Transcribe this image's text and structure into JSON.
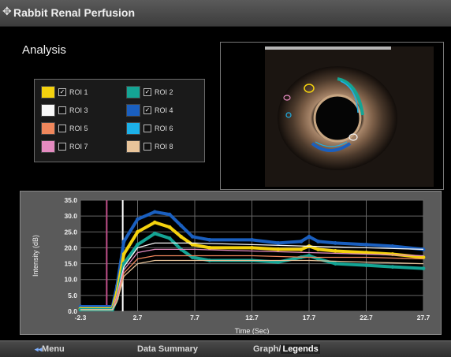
{
  "window": {
    "title": "Rabbit Renal Perfusion",
    "menu_icon": "window-menu-icon"
  },
  "analysis": {
    "title": "Analysis",
    "rois": [
      {
        "label": "ROI 1",
        "color": "#f4d20e",
        "checked": true
      },
      {
        "label": "ROI 2",
        "color": "#14a494",
        "checked": true
      },
      {
        "label": "ROI 3",
        "color": "#f8f8f8",
        "checked": false
      },
      {
        "label": "ROI 4",
        "color": "#1a5fbf",
        "checked": true
      },
      {
        "label": "ROI 5",
        "color": "#f0875c",
        "checked": false
      },
      {
        "label": "ROI 6",
        "color": "#1cb0e8",
        "checked": false
      },
      {
        "label": "ROI 7",
        "color": "#e48bc0",
        "checked": false
      },
      {
        "label": "ROI 8",
        "color": "#e8c49a",
        "checked": false
      }
    ]
  },
  "chart_data": {
    "type": "line",
    "xlabel": "Time (Sec)",
    "ylabel": "Intensity (dB)",
    "xlim": [
      -2.3,
      27.7
    ],
    "ylim": [
      0,
      35
    ],
    "xticks": [
      "-2.3",
      "2.7",
      "7.7",
      "12.7",
      "17.7",
      "22.7",
      "27.7"
    ],
    "yticks": [
      "0.0",
      "5.0",
      "10.0",
      "15.0",
      "20.0",
      "25.0",
      "30.0",
      "35.0"
    ],
    "grid": true,
    "markers": [
      {
        "x": 0.0,
        "color": "#c0508a"
      },
      {
        "x": 1.4,
        "color": "#ffffff"
      }
    ],
    "series": [
      {
        "color": "#1a5fbf",
        "x": [
          -2.3,
          0.5,
          0.9,
          1.5,
          2.7,
          4.2,
          5.5,
          6.5,
          7.5,
          9.0,
          12.7,
          15.0,
          17.0,
          17.7,
          18.5,
          20.0,
          22.7,
          25.0,
          27.7
        ],
        "y": [
          1.5,
          1.5,
          8,
          22,
          29,
          31.3,
          30.5,
          27,
          23.5,
          22.5,
          22.5,
          21.5,
          22,
          23.5,
          22,
          21.5,
          21,
          20.5,
          19.5
        ]
      },
      {
        "color": "#f4d20e",
        "x": [
          -2.3,
          0.5,
          0.9,
          1.5,
          2.7,
          4.2,
          5.5,
          6.5,
          7.5,
          9.0,
          12.7,
          15.0,
          17.0,
          17.7,
          18.5,
          20.0,
          22.7,
          25.0,
          27.7
        ],
        "y": [
          0.8,
          0.8,
          6,
          18,
          25,
          28,
          26.5,
          23.5,
          21,
          20,
          20,
          19.5,
          19.5,
          20.5,
          19.5,
          19,
          18.5,
          18,
          17
        ]
      },
      {
        "color": "#14a494",
        "x": [
          -2.3,
          0.5,
          0.9,
          1.5,
          2.7,
          4.2,
          5.5,
          6.5,
          7.5,
          9.0,
          12.7,
          15.0,
          17.0,
          17.7,
          18.5,
          20.0,
          22.7,
          25.0,
          27.7
        ],
        "y": [
          0.5,
          0.5,
          4,
          15,
          21,
          24.5,
          23,
          19.5,
          17,
          16,
          16,
          15.5,
          17,
          17.5,
          16.5,
          15,
          14.5,
          14,
          13.5
        ]
      },
      {
        "color": "#f8f8f8",
        "x": [
          -2.3,
          0.5,
          0.9,
          1.5,
          2.7,
          4.2,
          7.7,
          12.7,
          17.7,
          22.7,
          27.7
        ],
        "y": [
          0.5,
          0.5,
          5,
          14,
          20,
          21.5,
          21.5,
          21,
          20.5,
          20,
          19.5
        ]
      },
      {
        "color": "#e48bc0",
        "x": [
          -2.3,
          0.5,
          0.9,
          1.5,
          2.7,
          4.2,
          7.7,
          12.7,
          17.7,
          22.7,
          27.7
        ],
        "y": [
          0.5,
          0.5,
          5,
          13,
          18.5,
          19.5,
          19.5,
          19,
          18.5,
          18,
          17.5
        ]
      },
      {
        "color": "#f0875c",
        "x": [
          -2.3,
          0.5,
          0.9,
          1.5,
          2.7,
          4.2,
          7.7,
          12.7,
          17.7,
          22.7,
          27.7
        ],
        "y": [
          0.5,
          0.5,
          4,
          12,
          16.5,
          17.5,
          17.5,
          17.5,
          17,
          17,
          16.5
        ]
      },
      {
        "color": "#e8c49a",
        "x": [
          -2.3,
          0.5,
          0.9,
          1.5,
          2.7,
          4.2,
          7.7,
          12.7,
          17.7,
          22.7,
          27.7
        ],
        "y": [
          0.5,
          0.5,
          3,
          11,
          15,
          16,
          16,
          16,
          16,
          15.5,
          15
        ]
      }
    ]
  },
  "footer": {
    "menu_icon": "menu-arrow-icon",
    "menu_label": "Menu",
    "summary_label": "Data Summary",
    "graph_label": "Graph",
    "separator": "/",
    "legends_label": "Legends"
  }
}
